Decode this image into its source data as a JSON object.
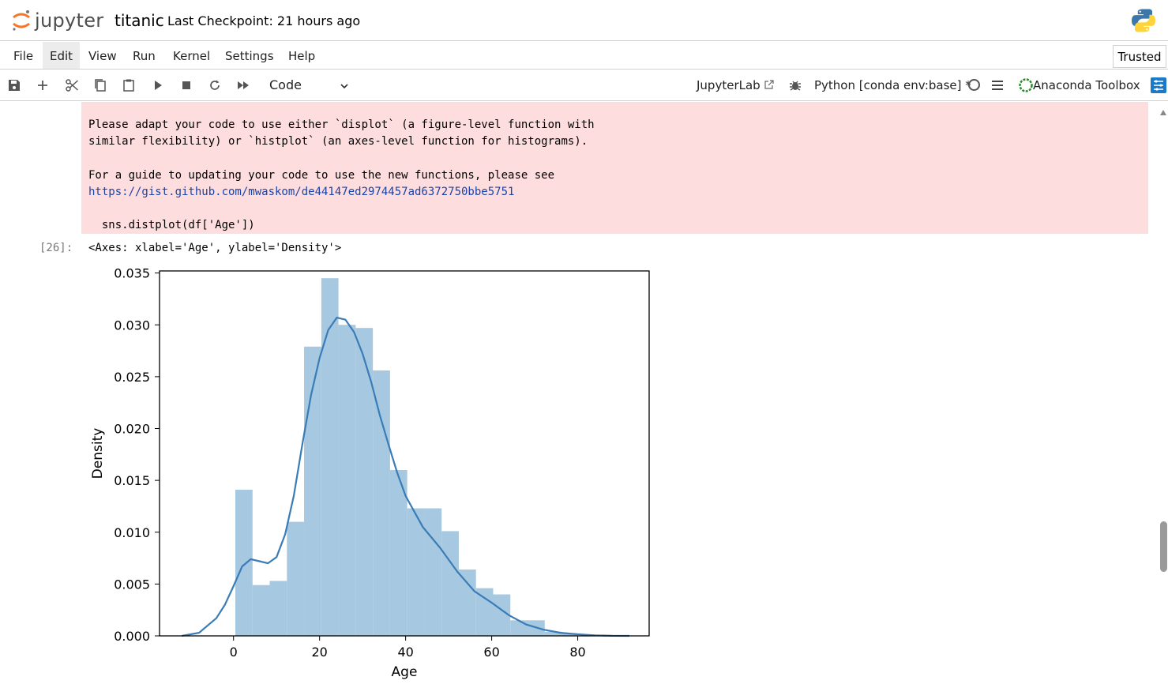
{
  "header": {
    "logo_text": "jupyter",
    "notebook_title": "titanic",
    "checkpoint_text": "Last Checkpoint: 21 hours ago",
    "python_icon": "python-logo-icon"
  },
  "menubar": {
    "items": [
      "File",
      "Edit",
      "View",
      "Run",
      "Kernel",
      "Settings",
      "Help"
    ],
    "active": "Edit",
    "trusted_label": "Trusted"
  },
  "toolbar": {
    "buttons": [
      "save-icon",
      "add-cell-icon",
      "cut-icon",
      "copy-icon",
      "paste-icon",
      "run-icon",
      "stop-icon",
      "restart-icon",
      "run-all-icon"
    ],
    "cell_type": "Code",
    "jupyterlab_label": "JupyterLab",
    "kernel_label": "Python [conda env:base] *",
    "anaconda_label": "Anaconda Toolbox"
  },
  "output": {
    "warning_lines": [
      "Please adapt your code to use either `displot` (a figure-level function with",
      "similar flexibility) or `histplot` (an axes-level function for histograms).",
      "",
      "For a guide to updating your code to use the new functions, please see"
    ],
    "warning_link": "https://gist.github.com/mwaskom/de44147ed2974457ad6372750bbe5751",
    "warning_code": "  sns.distplot(df['Age'])",
    "prompt": "[26]:",
    "repr": "<Axes: xlabel='Age', ylabel='Density'>"
  },
  "colors": {
    "error_bg": "#fddddd",
    "bar_fill": "#a6c8e0",
    "kde_line": "#3a7cb5",
    "link": "#1a43a8"
  },
  "chart_data": {
    "type": "bar",
    "xlabel": "Age",
    "ylabel": "Density",
    "xlim": [
      -17.2,
      96.6
    ],
    "ylim": [
      0,
      0.0352
    ],
    "xticks": [
      0,
      20,
      40,
      60,
      80
    ],
    "yticks": [
      0.0,
      0.005,
      0.01,
      0.015,
      0.02,
      0.025,
      0.03,
      0.035
    ],
    "ytick_labels": [
      "0.000",
      "0.005",
      "0.010",
      "0.015",
      "0.020",
      "0.025",
      "0.030",
      "0.035"
    ],
    "bin_edges": [
      0.42,
      4.42,
      8.41,
      12.41,
      16.4,
      20.4,
      24.39,
      28.39,
      32.38,
      36.38,
      40.37,
      44.37,
      48.36,
      52.36,
      56.35,
      60.35,
      64.34,
      68.34,
      72.33,
      76.33,
      80.0
    ],
    "bin_values": [
      0.0141,
      0.0049,
      0.0053,
      0.011,
      0.0279,
      0.0345,
      0.03,
      0.0297,
      0.0256,
      0.016,
      0.0123,
      0.0123,
      0.0101,
      0.0064,
      0.0046,
      0.004,
      0.0015,
      0.0015,
      0.0004,
      0.0002
    ],
    "kde": {
      "x": [
        -12,
        -8,
        -4,
        -2,
        0,
        2,
        4,
        6,
        8,
        10,
        12,
        14,
        16,
        18,
        20,
        22,
        24,
        26,
        28,
        30,
        32,
        34,
        36,
        38,
        40,
        44,
        48,
        52,
        56,
        60,
        64,
        68,
        72,
        76,
        80,
        84,
        88,
        92
      ],
      "y": [
        0.0,
        0.0003,
        0.0017,
        0.003,
        0.0048,
        0.0067,
        0.0074,
        0.0072,
        0.007,
        0.0076,
        0.0098,
        0.0135,
        0.0185,
        0.0232,
        0.0268,
        0.0295,
        0.0307,
        0.0305,
        0.0293,
        0.0272,
        0.0245,
        0.0213,
        0.0185,
        0.0158,
        0.0135,
        0.0105,
        0.0085,
        0.0062,
        0.0043,
        0.0032,
        0.002,
        0.0011,
        0.0006,
        0.0003,
        0.00015,
        5e-05,
        1e-05,
        0.0
      ]
    }
  }
}
